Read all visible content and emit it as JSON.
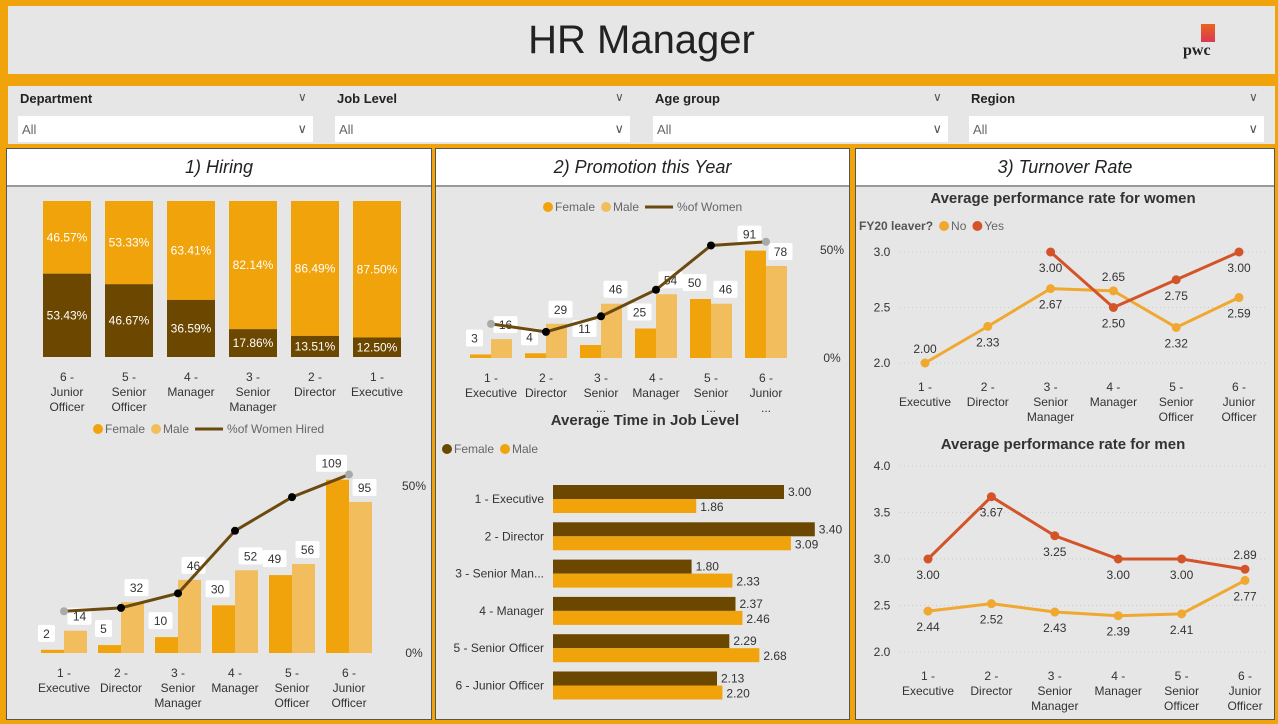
{
  "header": {
    "title": "HR Manager",
    "logo_text": "pwc"
  },
  "filters": [
    {
      "label": "Department",
      "value": "All"
    },
    {
      "label": "Job Level",
      "value": "All"
    },
    {
      "label": "Age group",
      "value": "All"
    },
    {
      "label": "Region",
      "value": "All"
    }
  ],
  "panels": [
    "1) Hiring",
    "2) Promotion this Year",
    "3) Turnover Rate"
  ],
  "colors": {
    "female": "#f0a30a",
    "male": "#f2bd5c",
    "dark": "#6b4700",
    "line": "#6b4a10",
    "no": "#f0a830",
    "yes": "#d35428"
  },
  "chart_data": [
    {
      "id": "hiring_share",
      "type": "bar",
      "stacked": true,
      "categories": [
        "6 - Junior Officer",
        "5 - Senior Officer",
        "4 - Manager",
        "3 - Senior Manager",
        "2 - Director",
        "1 - Executive"
      ],
      "series": [
        {
          "values": [
            46.57,
            53.33,
            63.41,
            82.14,
            86.49,
            87.5
          ],
          "labels": [
            "46.57%",
            "53.33%",
            "63.41%",
            "82.14%",
            "86.49%",
            "87.50%"
          ]
        },
        {
          "values": [
            53.43,
            46.67,
            36.59,
            17.86,
            13.51,
            12.5
          ],
          "labels": [
            "53.43%",
            "46.67%",
            "36.59%",
            "17.86%",
            "13.51%",
            "12.50%"
          ]
        }
      ]
    },
    {
      "id": "hiring_counts",
      "type": "bar",
      "categories": [
        "1 - Executive",
        "2 - Director",
        "3 - Senior Manager",
        "4 - Manager",
        "5 - Senior Officer",
        "6 - Junior Officer"
      ],
      "legend": [
        "Female",
        "Male",
        "%of Women Hired"
      ],
      "series": [
        {
          "name": "Female",
          "values": [
            2,
            5,
            10,
            30,
            49,
            109
          ]
        },
        {
          "name": "Male",
          "values": [
            14,
            32,
            46,
            52,
            56,
            95
          ]
        },
        {
          "name": "%of Women Hired",
          "type": "line",
          "values": [
            12.5,
            13.51,
            17.86,
            36.59,
            46.67,
            53.43
          ]
        }
      ],
      "y2_ticks": [
        "0%",
        "50%"
      ]
    },
    {
      "id": "promotion",
      "type": "bar",
      "categories": [
        "1 - Executive",
        "2 - Director",
        "3 - Senior ...",
        "4 - Manager",
        "5 - Senior ...",
        "6 - Junior ..."
      ],
      "legend": [
        "Female",
        "Male",
        "%of Women"
      ],
      "series": [
        {
          "name": "Female",
          "values": [
            3,
            4,
            11,
            25,
            50,
            91
          ]
        },
        {
          "name": "Male",
          "values": [
            16,
            29,
            46,
            54,
            46,
            78
          ]
        },
        {
          "name": "%of Women",
          "type": "line",
          "values": [
            15.8,
            12.1,
            19.3,
            31.6,
            52.1,
            53.8
          ]
        }
      ],
      "y2_ticks": [
        "0%",
        "50%"
      ]
    },
    {
      "id": "time_in_level",
      "type": "bar",
      "orientation": "horizontal",
      "title": "Average Time in Job Level",
      "legend": [
        "Female",
        "Male"
      ],
      "categories": [
        "1 - Executive",
        "2 - Director",
        "3 - Senior Man...",
        "4 - Manager",
        "5 - Senior Officer",
        "6 - Junior Officer"
      ],
      "series": [
        {
          "name": "Female",
          "values": [
            3.0,
            3.4,
            1.8,
            2.37,
            2.29,
            2.13
          ]
        },
        {
          "name": "Male",
          "values": [
            1.86,
            3.09,
            2.33,
            2.46,
            2.68,
            2.2
          ]
        }
      ]
    },
    {
      "id": "perf_women",
      "type": "line",
      "title": "Average performance rate for women",
      "legend_title": "FY20 leaver?",
      "legend": [
        "No",
        "Yes"
      ],
      "categories": [
        "1 - Executive",
        "2 - Director",
        "3 - Senior Manager",
        "4 - Manager",
        "5 - Senior Officer",
        "6 - Junior Officer"
      ],
      "y_ticks": [
        "2.0",
        "2.5",
        "3.0"
      ],
      "ylim": [
        2.0,
        3.0
      ],
      "series": [
        {
          "name": "No",
          "values": [
            2.0,
            2.33,
            2.67,
            2.65,
            2.32,
            2.59
          ]
        },
        {
          "name": "Yes",
          "values": [
            null,
            null,
            3.0,
            2.5,
            2.75,
            3.0
          ]
        }
      ]
    },
    {
      "id": "perf_men",
      "type": "line",
      "title": "Average performance rate for men",
      "categories": [
        "1 - Executive",
        "2 - Director",
        "3 - Senior Manager",
        "4 - Manager",
        "5 - Senior Officer",
        "6 - Junior Officer"
      ],
      "y_ticks": [
        "2.0",
        "2.5",
        "3.0",
        "3.5",
        "4.0"
      ],
      "ylim": [
        2.0,
        4.0
      ],
      "series": [
        {
          "name": "No",
          "values": [
            2.44,
            2.52,
            2.43,
            2.39,
            2.41,
            2.77
          ]
        },
        {
          "name": "Yes",
          "values": [
            3.0,
            3.67,
            3.25,
            3.0,
            3.0,
            2.89
          ]
        }
      ]
    }
  ]
}
